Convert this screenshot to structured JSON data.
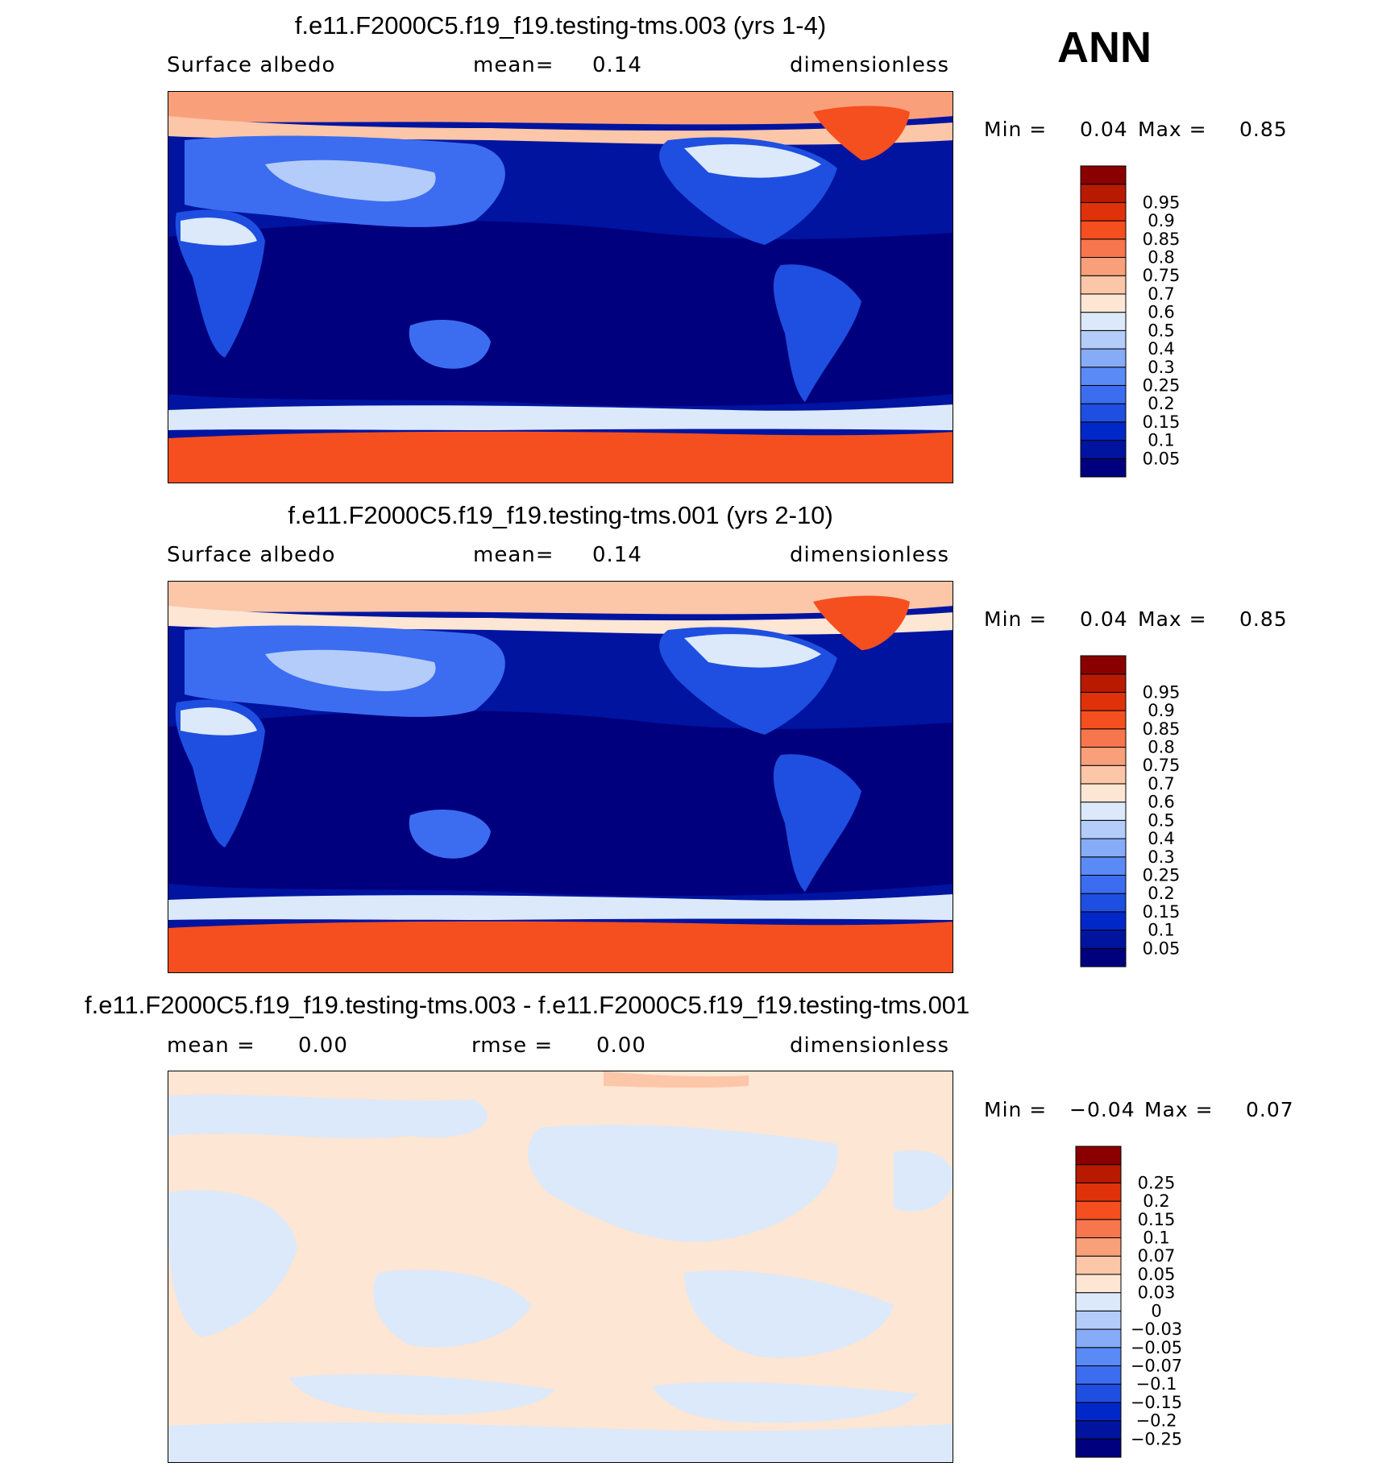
{
  "season": "ANN",
  "panels": [
    {
      "title": "f.e11.F2000C5.f19_f19.testing-tms.003 (yrs 1-4)",
      "left_label": "Surface  albedo",
      "mid_label": "mean=",
      "mid_value": "0.14",
      "right_label": "dimensionless",
      "min_label": "Min  =",
      "min_value": "0.04",
      "max_label": "Max  =",
      "max_value": "0.85"
    },
    {
      "title": "f.e11.F2000C5.f19_f19.testing-tms.001 (yrs 2-10)",
      "left_label": "Surface  albedo",
      "mid_label": "mean=",
      "mid_value": "0.14",
      "right_label": "dimensionless",
      "min_label": "Min  =",
      "min_value": "0.04",
      "max_label": "Max  =",
      "max_value": "0.85"
    },
    {
      "title": "f.e11.F2000C5.f19_f19.testing-tms.003 - f.e11.F2000C5.f19_f19.testing-tms.001",
      "left_label": "mean  =",
      "left_value": "0.00",
      "mid_label": "rmse  =",
      "mid_value": "0.00",
      "right_label": "dimensionless",
      "min_label": "Min  =",
      "min_value": "−0.04",
      "max_label": "Max  =",
      "max_value": "0.07"
    }
  ],
  "chart_data": [
    {
      "type": "heatmap",
      "title": "f.e11.F2000C5.f19_f19.testing-tms.003 (yrs 1-4)",
      "variable": "Surface albedo",
      "units": "dimensionless",
      "mean": 0.14,
      "min": 0.04,
      "max": 0.85,
      "colorbar": {
        "levels": [
          "0.05",
          "0.1",
          "0.15",
          "0.2",
          "0.25",
          "0.3",
          "0.4",
          "0.5",
          "0.6",
          "0.7",
          "0.75",
          "0.8",
          "0.85",
          "0.9",
          "0.95"
        ],
        "colors": [
          "#00007f",
          "#0014a0",
          "#0028c8",
          "#1f4fe0",
          "#3c6df0",
          "#5a8af5",
          "#86abf7",
          "#b3ccf9",
          "#dbe9fb",
          "#fde6d3",
          "#fcc6a8",
          "#f9a07a",
          "#f7764d",
          "#f54f1f",
          "#e0320a",
          "#b81a00",
          "#8a0000"
        ]
      }
    },
    {
      "type": "heatmap",
      "title": "f.e11.F2000C5.f19_f19.testing-tms.001 (yrs 2-10)",
      "variable": "Surface albedo",
      "units": "dimensionless",
      "mean": 0.14,
      "min": 0.04,
      "max": 0.85,
      "colorbar": {
        "levels": [
          "0.05",
          "0.1",
          "0.15",
          "0.2",
          "0.25",
          "0.3",
          "0.4",
          "0.5",
          "0.6",
          "0.7",
          "0.75",
          "0.8",
          "0.85",
          "0.9",
          "0.95"
        ],
        "colors": [
          "#00007f",
          "#0014a0",
          "#0028c8",
          "#1f4fe0",
          "#3c6df0",
          "#5a8af5",
          "#86abf7",
          "#b3ccf9",
          "#dbe9fb",
          "#fde6d3",
          "#fcc6a8",
          "#f9a07a",
          "#f7764d",
          "#f54f1f",
          "#e0320a",
          "#b81a00",
          "#8a0000"
        ]
      }
    },
    {
      "type": "heatmap",
      "title": "f.e11.F2000C5.f19_f19.testing-tms.003 - f.e11.F2000C5.f19_f19.testing-tms.001",
      "units": "dimensionless",
      "mean": 0.0,
      "rmse": 0.0,
      "min": -0.04,
      "max": 0.07,
      "colorbar": {
        "levels": [
          "−0.25",
          "−0.2",
          "−0.15",
          "−0.1",
          "−0.07",
          "−0.05",
          "−0.03",
          "0",
          "0.03",
          "0.05",
          "0.07",
          "0.1",
          "0.15",
          "0.2",
          "0.25"
        ],
        "colors": [
          "#00007f",
          "#0014a0",
          "#0028c8",
          "#1f4fe0",
          "#3c6df0",
          "#5a8af5",
          "#86abf7",
          "#b3ccf9",
          "#dbe9fb",
          "#fde6d3",
          "#fcc6a8",
          "#f9a07a",
          "#f7764d",
          "#f54f1f",
          "#e0320a",
          "#b81a00",
          "#8a0000"
        ]
      }
    }
  ]
}
